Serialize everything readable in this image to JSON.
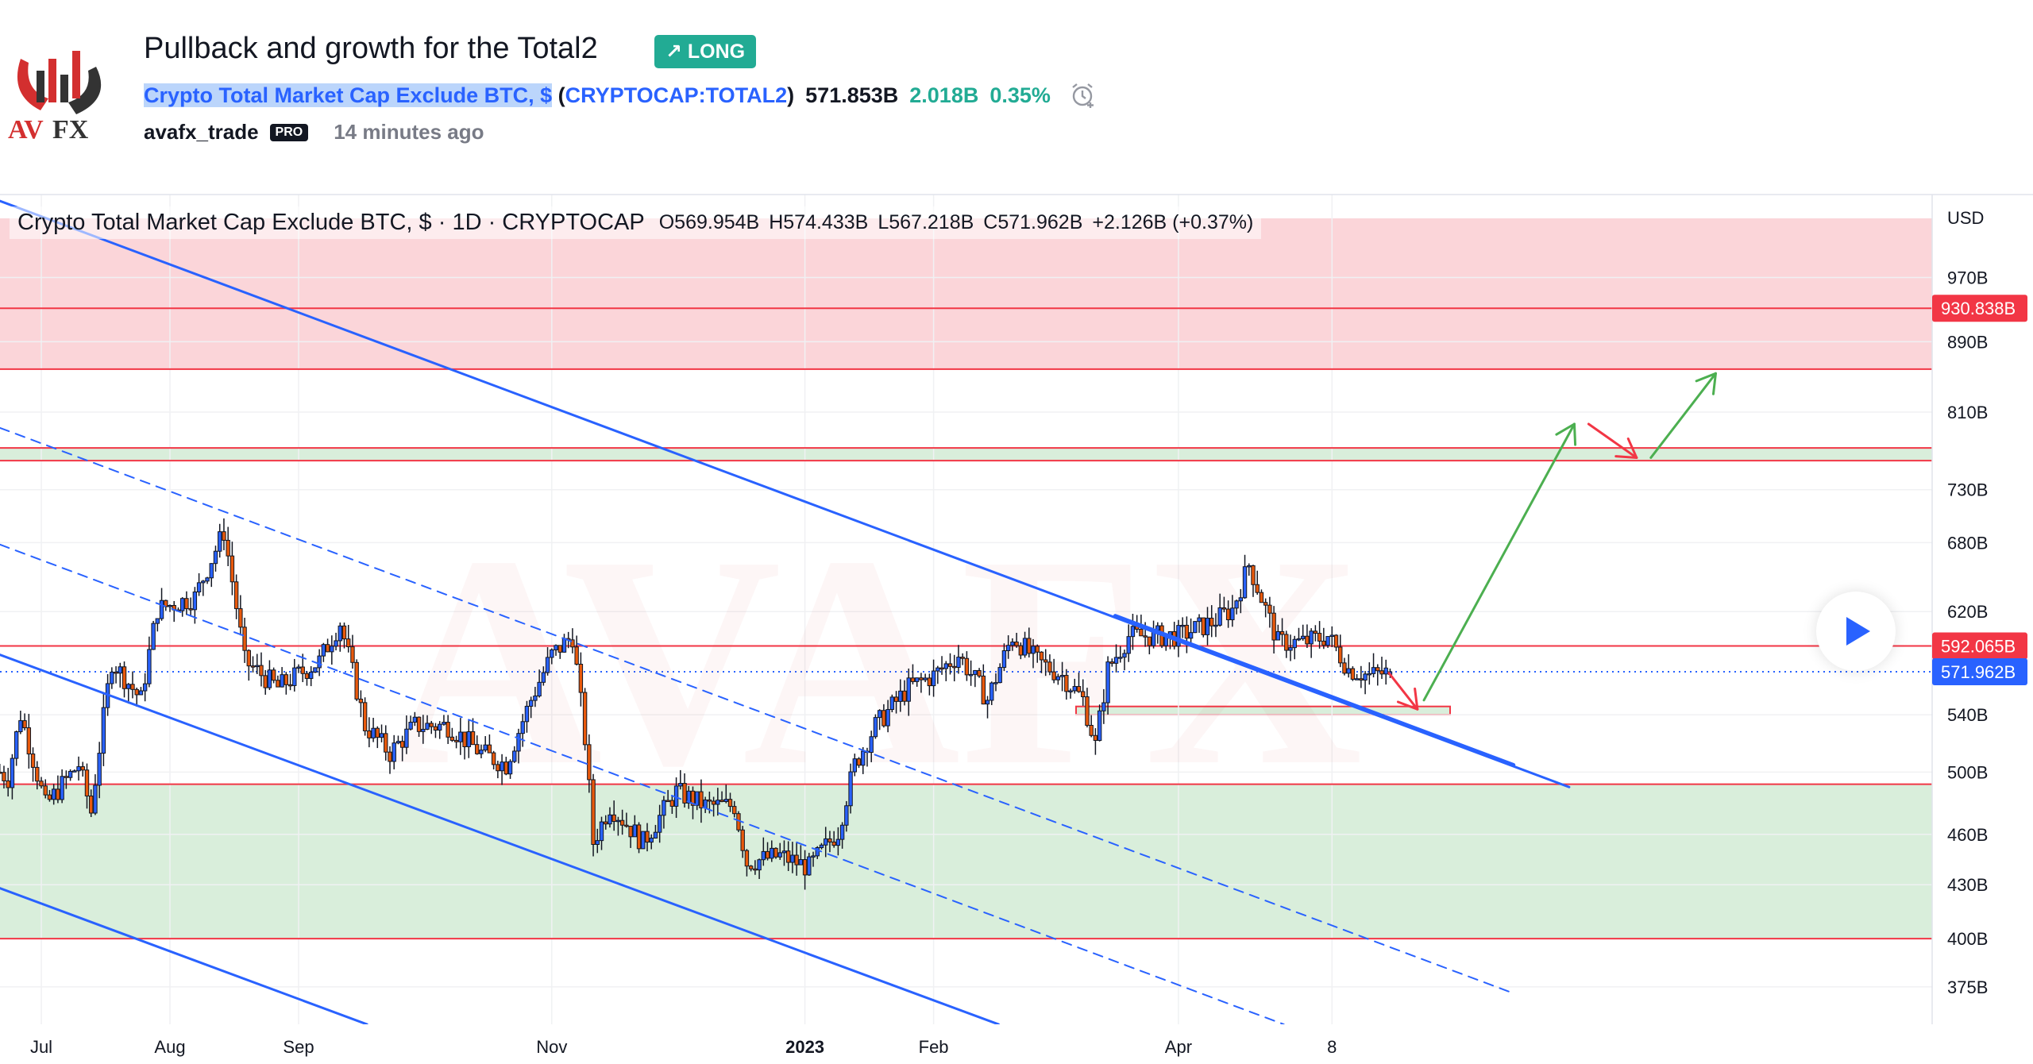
{
  "header": {
    "title": "Pullback and growth for the Total2",
    "badge": "LONG",
    "badge_icon": "arrow-up-right-icon",
    "symbol_name": "Crypto Total Market Cap Exclude BTC, $",
    "symbol_ticker": "CRYPTOCAP:TOTAL2",
    "paren_open": "(",
    "paren_close": ")",
    "price": "571.853B",
    "change": "2.018B",
    "change_pct": "0.35%",
    "author": "avafx_trade",
    "author_badge": "PRO",
    "published": "14 minutes ago",
    "logo_text": "AVAFX"
  },
  "legend": {
    "title": "Crypto Total Market Cap Exclude BTC, $ · 1D · CRYPTOCAP",
    "open": "O569.954B",
    "high": "H574.433B",
    "low": "L567.218B",
    "close": "C571.962B",
    "change": "+2.126B (+0.37%)"
  },
  "colors": {
    "up": "#2962ff",
    "down": "#e8590c",
    "resistance": "#f23645",
    "zone_red": "#fbd5d9",
    "zone_green": "#d9eedb",
    "line_blue": "#2962ff",
    "arrow_green": "#4caf50",
    "arrow_red": "#f23645"
  },
  "chart_data": {
    "type": "candlestick",
    "title": "Crypto Total Market Cap Exclude BTC, $ · 1D · CRYPTOCAP",
    "currency": "USD",
    "y_scale": "log",
    "ylim": [
      350,
      1050
    ],
    "y_ticks": [
      "970B",
      "890B",
      "810B",
      "730B",
      "680B",
      "620B",
      "540B",
      "500B",
      "460B",
      "430B",
      "400B",
      "375B"
    ],
    "y_tick_values": [
      970,
      890,
      810,
      730,
      680,
      620,
      540,
      500,
      460,
      430,
      400,
      375
    ],
    "x_ticks": [
      {
        "label": "Jul",
        "day": 0
      },
      {
        "label": "Aug",
        "day": 31
      },
      {
        "label": "Sep",
        "day": 62
      },
      {
        "label": "Nov",
        "day": 123
      },
      {
        "label": "2023",
        "day": 184
      },
      {
        "label": "Feb",
        "day": 215
      },
      {
        "label": "Apr",
        "day": 274
      },
      {
        "label": "8",
        "day": 311
      }
    ],
    "x_unit": "days since 2022-07-01",
    "price_path": [
      [
        -10,
        500
      ],
      [
        -8,
        496
      ],
      [
        -5,
        540
      ],
      [
        1,
        478
      ],
      [
        9,
        505
      ],
      [
        12,
        474
      ],
      [
        17,
        580
      ],
      [
        24,
        551
      ],
      [
        28,
        622
      ],
      [
        37,
        632
      ],
      [
        44,
        690
      ],
      [
        49,
        580
      ],
      [
        57,
        560
      ],
      [
        67,
        580
      ],
      [
        72,
        611
      ],
      [
        78,
        532
      ],
      [
        84,
        513
      ],
      [
        90,
        532
      ],
      [
        98,
        532
      ],
      [
        106,
        513
      ],
      [
        112,
        505
      ],
      [
        118,
        551
      ],
      [
        123,
        585
      ],
      [
        128,
        600
      ],
      [
        131,
        523
      ],
      [
        133,
        455
      ],
      [
        137,
        478
      ],
      [
        145,
        455
      ],
      [
        153,
        487
      ],
      [
        160,
        478
      ],
      [
        167,
        478
      ],
      [
        170,
        443
      ],
      [
        178,
        447
      ],
      [
        185,
        440
      ],
      [
        192,
        462
      ],
      [
        196,
        505
      ],
      [
        201,
        532
      ],
      [
        209,
        560
      ],
      [
        215,
        569
      ],
      [
        221,
        585
      ],
      [
        228,
        551
      ],
      [
        234,
        600
      ],
      [
        240,
        580
      ],
      [
        246,
        569
      ],
      [
        251,
        551
      ],
      [
        254,
        518
      ],
      [
        257,
        574
      ],
      [
        262,
        600
      ],
      [
        268,
        600
      ],
      [
        274,
        600
      ],
      [
        282,
        611
      ],
      [
        287,
        622
      ],
      [
        291,
        660
      ],
      [
        295,
        622
      ],
      [
        298,
        595
      ],
      [
        304,
        595
      ],
      [
        310,
        600
      ],
      [
        315,
        574
      ],
      [
        320,
        569
      ],
      [
        325,
        572
      ]
    ],
    "last": {
      "open": 569.954,
      "high": 574.433,
      "low": 567.218,
      "close": 571.962
    },
    "levels": [
      {
        "price": 930.838,
        "label": "930.838B",
        "kind": "resistance"
      },
      {
        "price": 592.065,
        "label": "592.065B",
        "kind": "resistance"
      },
      {
        "price": 571.962,
        "label": "571.962B",
        "kind": "last-price"
      }
    ],
    "zones": [
      {
        "from": 858,
        "to": 1050,
        "kind": "red"
      },
      {
        "from": 759,
        "to": 772,
        "kind": "green"
      },
      {
        "from": 400,
        "to": 492,
        "kind": "green"
      },
      {
        "from": 540,
        "to": 546,
        "kind": "green"
      }
    ]
  },
  "play_icon": "play-icon"
}
